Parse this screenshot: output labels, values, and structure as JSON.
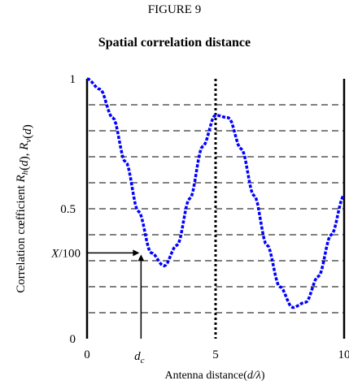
{
  "figure_label": "FIGURE 9",
  "chart_data": {
    "type": "line",
    "title": "Spatial correlation distance",
    "xlabel": "Antenna distance(d/λ)",
    "ylabel": "Correlation cœfficient R_h(d), R_v(d)",
    "xlim": [
      0,
      10
    ],
    "ylim": [
      0,
      1
    ],
    "x_ticks": [
      "0",
      "5",
      "10"
    ],
    "y_ticks": [
      "0",
      "0.5",
      "1"
    ],
    "annotations": {
      "dc_label": "d_c",
      "dc_x": 2.1,
      "x100_label": "X/100",
      "x100_y": 0.33,
      "vertical_dotted_x": 5
    },
    "series": [
      {
        "color": "#0000ff",
        "x": [
          0,
          0.5,
          1,
          1.5,
          2,
          2.5,
          3,
          3.5,
          4,
          4.5,
          5,
          5.5,
          6,
          6.5,
          7,
          7.5,
          8,
          8.5,
          9,
          9.5,
          10
        ],
        "y": [
          1.0,
          0.96,
          0.85,
          0.68,
          0.49,
          0.33,
          0.28,
          0.36,
          0.54,
          0.74,
          0.86,
          0.85,
          0.73,
          0.55,
          0.36,
          0.2,
          0.12,
          0.14,
          0.24,
          0.4,
          0.55
        ]
      }
    ],
    "grid": "dashed horizontal",
    "legend": "none"
  }
}
